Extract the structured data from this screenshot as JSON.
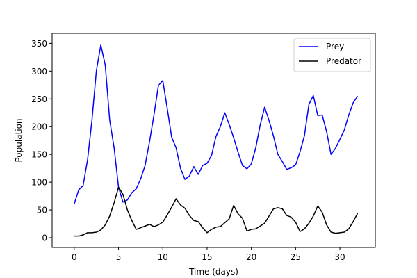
{
  "chart_data": {
    "type": "line",
    "title": "",
    "xlabel": "Time (days)",
    "ylabel": "Population",
    "xlim": [
      -2.5,
      34
    ],
    "ylim": [
      -17.5,
      368
    ],
    "xticks": [
      0,
      5,
      10,
      15,
      20,
      25,
      30
    ],
    "yticks": [
      0,
      50,
      100,
      150,
      200,
      250,
      300,
      350
    ],
    "grid": false,
    "legend": {
      "position": "top-right"
    },
    "series": [
      {
        "name": "Prey",
        "color": "#0000ff",
        "x": [
          0,
          0.5,
          1,
          1.5,
          2,
          2.5,
          3,
          3.5,
          4,
          4.5,
          5,
          5.5,
          6,
          6.5,
          7,
          7.5,
          8,
          8.5,
          9,
          9.5,
          10,
          10.5,
          11,
          11.5,
          12,
          12.5,
          13,
          13.5,
          14,
          14.5,
          15,
          15.5,
          16,
          16.5,
          17,
          17.5,
          18,
          18.5,
          19,
          19.5,
          20,
          20.5,
          21,
          21.5,
          22,
          22.5,
          23,
          23.5,
          24,
          24.5,
          25,
          25.5,
          26,
          26.5,
          27,
          27.5,
          28,
          28.5,
          29,
          29.5,
          30,
          30.5,
          31,
          31.5,
          32
        ],
        "y": [
          61,
          86,
          94,
          140,
          212,
          301,
          347,
          311,
          212,
          162,
          91,
          64,
          68,
          81,
          88,
          106,
          130,
          173,
          221,
          274,
          283,
          233,
          181,
          162,
          125,
          105,
          111,
          128,
          114,
          130,
          134,
          148,
          182,
          200,
          225,
          204,
          180,
          154,
          130,
          124,
          133,
          162,
          203,
          235,
          211,
          183,
          150,
          137,
          123,
          126,
          131,
          155,
          184,
          240,
          256,
          220,
          221,
          191,
          150,
          161,
          177,
          194,
          221,
          243,
          255
        ]
      },
      {
        "name": "Predator",
        "color": "#000000",
        "x": [
          0,
          0.5,
          1,
          1.5,
          2,
          2.5,
          3,
          3.5,
          4,
          4.5,
          5,
          5.5,
          6,
          6.5,
          7,
          7.5,
          8,
          8.5,
          9,
          9.5,
          10,
          10.5,
          11,
          11.5,
          12,
          12.5,
          13,
          13.5,
          14,
          14.5,
          15,
          15.5,
          16,
          16.5,
          17,
          17.5,
          18,
          18.5,
          19,
          19.5,
          20,
          20.5,
          21,
          21.5,
          22,
          22.5,
          23,
          23.5,
          24,
          24.5,
          25,
          25.5,
          26,
          26.5,
          27,
          27.5,
          28,
          28.5,
          29,
          29.5,
          30,
          30.5,
          31,
          31.5,
          32
        ],
        "y": [
          3,
          3,
          5,
          9,
          9,
          10,
          14,
          23,
          39,
          63,
          91,
          78,
          50,
          31,
          15,
          18,
          21,
          24,
          20,
          23,
          28,
          41,
          55,
          70,
          59,
          53,
          40,
          31,
          29,
          18,
          9,
          15,
          19,
          20,
          27,
          34,
          58,
          43,
          35,
          12,
          15,
          16,
          21,
          26,
          39,
          52,
          54,
          52,
          40,
          37,
          28,
          11,
          16,
          26,
          39,
          57,
          46,
          23,
          10,
          8,
          9,
          10,
          16,
          29,
          44
        ]
      }
    ]
  }
}
